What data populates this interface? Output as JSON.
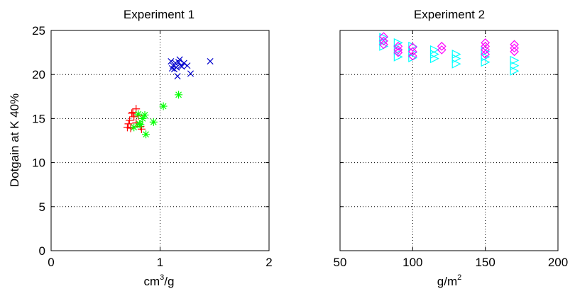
{
  "chart_data": [
    {
      "type": "scatter",
      "title": "Experiment 1",
      "ylabel": "Dotgain at K 40%",
      "xlabel_main": "cm",
      "xlabel_sup": "3",
      "xlabel_tail": "/g",
      "xlim": [
        0,
        2
      ],
      "ylim": [
        0,
        25
      ],
      "xticks": [
        0,
        1,
        2
      ],
      "yticks": [
        0,
        5,
        10,
        15,
        20,
        25
      ],
      "grid": true,
      "series": [
        {
          "marker": "plus",
          "color": "#ff0000",
          "points": [
            [
              0.7,
              14.0
            ],
            [
              0.72,
              14.8
            ],
            [
              0.74,
              15.6
            ],
            [
              0.76,
              15.2
            ],
            [
              0.78,
              16.1
            ],
            [
              0.8,
              15.3
            ],
            [
              0.82,
              14.1
            ],
            [
              0.73,
              13.9
            ],
            [
              0.75,
              15.7
            ],
            [
              0.78,
              14.5
            ],
            [
              0.83,
              13.8
            ],
            [
              0.71,
              14.4
            ]
          ]
        },
        {
          "marker": "asterisk",
          "color": "#00ff00",
          "points": [
            [
              0.76,
              14.0
            ],
            [
              0.8,
              15.5
            ],
            [
              0.82,
              14.3
            ],
            [
              0.84,
              15.0
            ],
            [
              0.86,
              15.4
            ],
            [
              0.87,
              13.2
            ],
            [
              0.94,
              14.6
            ],
            [
              1.03,
              16.4
            ],
            [
              1.17,
              17.7
            ],
            [
              0.81,
              14.4
            ]
          ]
        },
        {
          "marker": "cross",
          "color": "#0000cc",
          "points": [
            [
              1.1,
              21.5
            ],
            [
              1.12,
              21.0
            ],
            [
              1.13,
              20.6
            ],
            [
              1.14,
              21.3
            ],
            [
              1.15,
              20.8
            ],
            [
              1.16,
              19.8
            ],
            [
              1.17,
              21.4
            ],
            [
              1.18,
              21.7
            ],
            [
              1.19,
              21.0
            ],
            [
              1.2,
              20.9
            ],
            [
              1.22,
              21.3
            ],
            [
              1.25,
              21.0
            ],
            [
              1.28,
              20.1
            ],
            [
              1.46,
              21.5
            ],
            [
              1.11,
              20.7
            ]
          ]
        }
      ]
    },
    {
      "type": "scatter",
      "title": "Experiment 2",
      "xlabel_main": "g/m",
      "xlabel_sup": "2",
      "xlabel_tail": "",
      "xlim": [
        50,
        200
      ],
      "ylim": [
        0,
        25
      ],
      "xticks": [
        50,
        100,
        150,
        200
      ],
      "grid": true,
      "series": [
        {
          "marker": "triangle-right",
          "color": "#00ffff",
          "points": [
            [
              80,
              23.2
            ],
            [
              80,
              24.2
            ],
            [
              80,
              23.8
            ],
            [
              90,
              22.0
            ],
            [
              90,
              22.8
            ],
            [
              90,
              23.6
            ],
            [
              100,
              21.9
            ],
            [
              100,
              22.5
            ],
            [
              100,
              23.2
            ],
            [
              115,
              21.8
            ],
            [
              115,
              22.3
            ],
            [
              115,
              22.8
            ],
            [
              130,
              21.2
            ],
            [
              130,
              21.8
            ],
            [
              130,
              22.3
            ],
            [
              150,
              21.4
            ],
            [
              150,
              22.0
            ],
            [
              150,
              22.6
            ],
            [
              170,
              20.4
            ],
            [
              170,
              21.0
            ],
            [
              170,
              21.6
            ]
          ]
        },
        {
          "marker": "diamond",
          "color": "#ff00ff",
          "points": [
            [
              80,
              23.4
            ],
            [
              80,
              23.8
            ],
            [
              80,
              24.3
            ],
            [
              90,
              22.5
            ],
            [
              90,
              22.8
            ],
            [
              90,
              23.2
            ],
            [
              100,
              22.1
            ],
            [
              100,
              22.6
            ],
            [
              100,
              23.1
            ],
            [
              120,
              22.8
            ],
            [
              120,
              23.2
            ],
            [
              150,
              22.3
            ],
            [
              150,
              22.8
            ],
            [
              150,
              23.2
            ],
            [
              150,
              23.6
            ],
            [
              170,
              22.6
            ],
            [
              170,
              23.0
            ],
            [
              170,
              23.4
            ]
          ]
        }
      ]
    }
  ]
}
